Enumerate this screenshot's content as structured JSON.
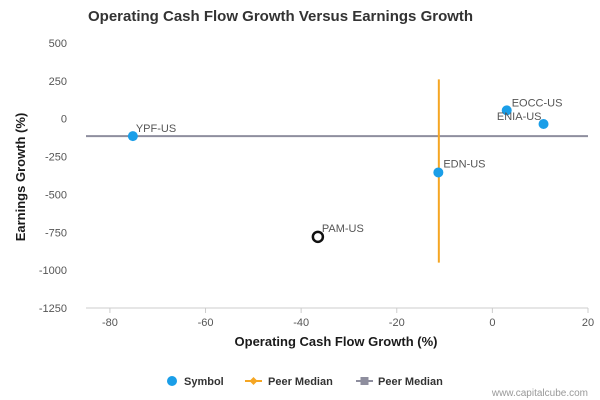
{
  "chart_data": {
    "type": "scatter",
    "title": "Operating Cash Flow Growth Versus Earnings Growth",
    "xlabel": "Operating Cash Flow Growth (%)",
    "ylabel": "Earnings Growth (%)",
    "xlim": [
      -85,
      20
    ],
    "ylim": [
      -1250,
      500
    ],
    "x_ticks": [
      -80,
      -60,
      -40,
      -20,
      0,
      20
    ],
    "y_ticks": [
      500,
      250,
      0,
      -250,
      -500,
      -750,
      -1000,
      -1250
    ],
    "points": [
      {
        "label": "YPF-US",
        "x": -75.2,
        "y": -115,
        "style": "filled",
        "color": "#1a9ee8"
      },
      {
        "label": "EOCC-US",
        "x": 3.0,
        "y": 55,
        "style": "filled",
        "color": "#1a9ee8"
      },
      {
        "label": "ENIA-US",
        "x": 10.7,
        "y": -35,
        "style": "filled",
        "color": "#1a9ee8"
      },
      {
        "label": "EDN-US",
        "x": -11.3,
        "y": -355,
        "style": "filled",
        "color": "#1a9ee8"
      },
      {
        "label": "PAM-US",
        "x": -36.5,
        "y": -780,
        "style": "hollow",
        "color": "#111111"
      }
    ],
    "peer_median_x": {
      "value": -11.2,
      "y_range": [
        260,
        -950
      ],
      "color": "#f5a623"
    },
    "peer_median_y": {
      "value": -115,
      "color": "#8e8e9e"
    },
    "legend": [
      {
        "label": "Symbol",
        "marker": "circle",
        "color": "#1a9ee8"
      },
      {
        "label": "Peer Median",
        "marker": "diamond-line",
        "color": "#f5a623"
      },
      {
        "label": "Peer Median",
        "marker": "square-line",
        "color": "#8e8e9e"
      }
    ],
    "legend_position": "bottom-center",
    "grid": false,
    "credit": "www.capitalcube.com"
  }
}
